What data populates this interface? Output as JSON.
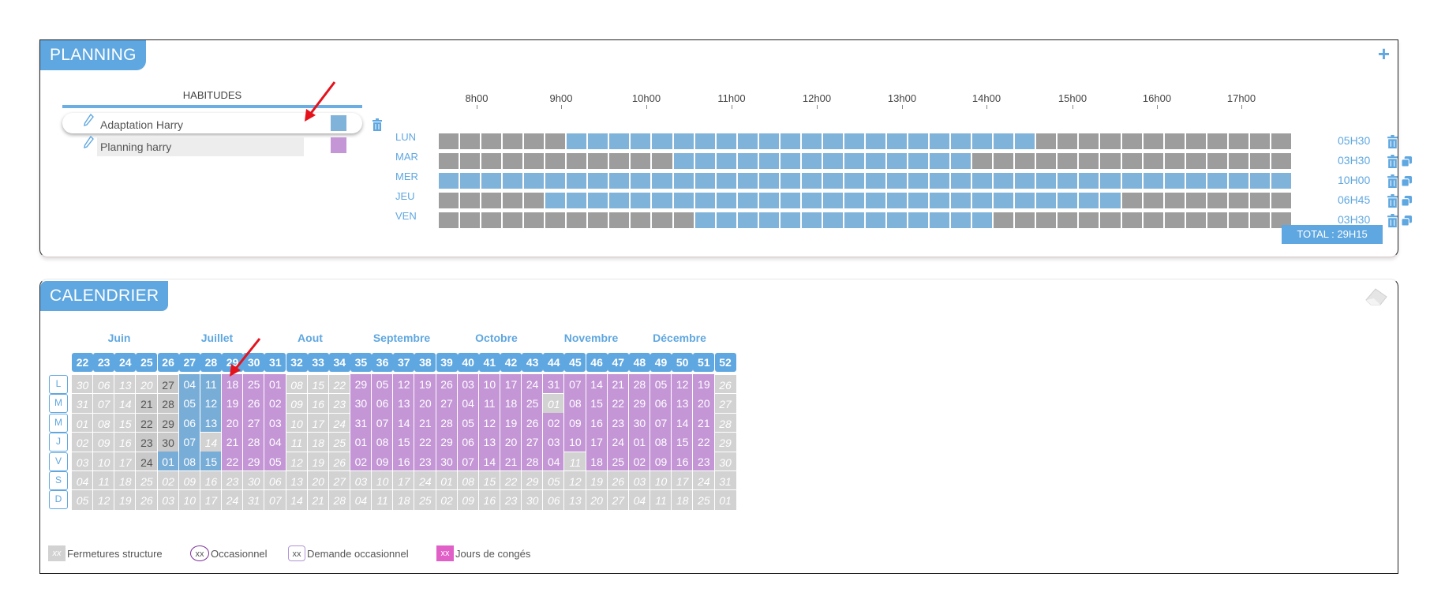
{
  "planning": {
    "title": "PLANNING",
    "add_icon": "plus-icon",
    "habitudes_title": "HABITUDES",
    "habitudes": [
      {
        "name": "Adaptation Harry",
        "color": "#7fb3da",
        "selected": true
      },
      {
        "name": "Planning harry",
        "color": "#c496d6",
        "selected": false
      }
    ],
    "hours": [
      "8h00",
      "9h00",
      "10h00",
      "11h00",
      "12h00",
      "13h00",
      "14h00",
      "15h00",
      "16h00",
      "17h00"
    ],
    "days": [
      {
        "label": "LUN",
        "duration": "05H30",
        "copy": false
      },
      {
        "label": "MAR",
        "duration": "03H30",
        "copy": true
      },
      {
        "label": "MER",
        "duration": "10H00",
        "copy": true
      },
      {
        "label": "JEU",
        "duration": "06H45",
        "copy": true
      },
      {
        "label": "VEN",
        "duration": "03H30",
        "copy": true
      }
    ],
    "total": "TOTAL : 29H15"
  },
  "calendar": {
    "title": "CALENDRIER",
    "months": [
      "Juin",
      "Juillet",
      "Aout",
      "Septembre",
      "Octobre",
      "Novembre",
      "Décembre"
    ],
    "weeks": [
      "22",
      "23",
      "24",
      "25",
      "26",
      "27",
      "28",
      "29",
      "30",
      "31",
      "32",
      "33",
      "34",
      "35",
      "36",
      "37",
      "38",
      "39",
      "40",
      "41",
      "42",
      "43",
      "44",
      "45",
      "46",
      "47",
      "48",
      "49",
      "50",
      "51",
      "52"
    ],
    "day_letters": [
      "L",
      "M",
      "M",
      "J",
      "V",
      "S",
      "D"
    ],
    "rows": [
      [
        "30",
        "06",
        "13",
        "20",
        "27",
        "04",
        "11",
        "18",
        "25",
        "01",
        "08",
        "15",
        "22",
        "29",
        "05",
        "12",
        "19",
        "26",
        "03",
        "10",
        "17",
        "24",
        "31",
        "07",
        "14",
        "21",
        "28",
        "05",
        "12",
        "19",
        "26"
      ],
      [
        "31",
        "07",
        "14",
        "21",
        "28",
        "05",
        "12",
        "19",
        "26",
        "02",
        "09",
        "16",
        "23",
        "30",
        "06",
        "13",
        "20",
        "27",
        "04",
        "11",
        "18",
        "25",
        "01",
        "08",
        "15",
        "22",
        "29",
        "06",
        "13",
        "20",
        "27"
      ],
      [
        "01",
        "08",
        "15",
        "22",
        "29",
        "06",
        "13",
        "20",
        "27",
        "03",
        "10",
        "17",
        "24",
        "31",
        "07",
        "14",
        "21",
        "28",
        "05",
        "12",
        "19",
        "26",
        "02",
        "09",
        "16",
        "23",
        "30",
        "07",
        "14",
        "21",
        "28"
      ],
      [
        "02",
        "09",
        "16",
        "23",
        "30",
        "07",
        "14",
        "21",
        "28",
        "04",
        "11",
        "18",
        "25",
        "01",
        "08",
        "15",
        "22",
        "29",
        "06",
        "13",
        "20",
        "27",
        "03",
        "10",
        "17",
        "24",
        "01",
        "08",
        "15",
        "22",
        "29"
      ],
      [
        "03",
        "10",
        "17",
        "24",
        "01",
        "08",
        "15",
        "22",
        "29",
        "05",
        "12",
        "19",
        "26",
        "02",
        "09",
        "16",
        "23",
        "30",
        "07",
        "14",
        "21",
        "28",
        "04",
        "11",
        "18",
        "25",
        "02",
        "09",
        "16",
        "23",
        "30"
      ],
      [
        "04",
        "11",
        "18",
        "25",
        "02",
        "09",
        "16",
        "23",
        "30",
        "06",
        "13",
        "20",
        "27",
        "03",
        "10",
        "17",
        "24",
        "01",
        "08",
        "15",
        "22",
        "29",
        "05",
        "12",
        "19",
        "26",
        "03",
        "10",
        "17",
        "24",
        "31"
      ],
      [
        "05",
        "12",
        "19",
        "26",
        "03",
        "10",
        "17",
        "24",
        "31",
        "07",
        "14",
        "21",
        "28",
        "04",
        "11",
        "18",
        "25",
        "02",
        "09",
        "16",
        "23",
        "30",
        "06",
        "13",
        "20",
        "27",
        "04",
        "11",
        "18",
        "25",
        "01"
      ]
    ],
    "legend": [
      {
        "box": "xx",
        "label": "Fermetures structure"
      },
      {
        "box": "xx",
        "label": "Occasionnel"
      },
      {
        "box": "xx",
        "label": "Demande occasionnel"
      },
      {
        "box": "xx",
        "label": "Jours de congés"
      }
    ],
    "colors": {
      "closed": "#d2d2d2",
      "past": "#c9c9c9",
      "blue": "#78add8",
      "purple": "#c496d6",
      "header": "#5fa7e0"
    }
  }
}
